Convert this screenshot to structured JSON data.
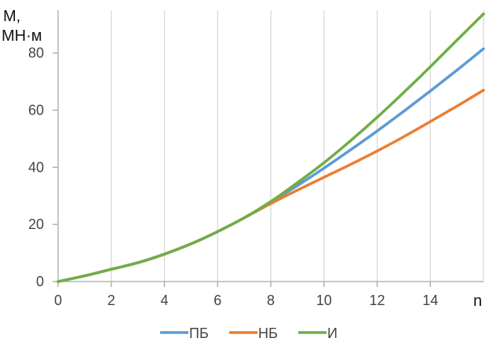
{
  "chart_data": {
    "type": "line",
    "ylabel_line1": "М,",
    "ylabel_line2": "МН·м",
    "xlabel": "n",
    "xlim": [
      0,
      16
    ],
    "ylim": [
      0,
      95
    ],
    "x_ticks": [
      0,
      2,
      4,
      6,
      8,
      10,
      12,
      14
    ],
    "y_ticks": [
      0,
      20,
      40,
      60,
      80
    ],
    "grid": "vertical",
    "legend_position": "bottom",
    "series": [
      {
        "name": "ПБ",
        "color": "#5B9BD5",
        "x": [
          0,
          1,
          2,
          3,
          4,
          5,
          6,
          7,
          8,
          9,
          10,
          11,
          12,
          13,
          14,
          15,
          16
        ],
        "y": [
          0,
          2,
          4.3,
          6.6,
          9.6,
          13.2,
          17.5,
          22.3,
          27.8,
          33.6,
          39.7,
          46.1,
          52.7,
          59.6,
          66.7,
          74.0,
          81.5
        ]
      },
      {
        "name": "НБ",
        "color": "#ED7D31",
        "x": [
          0,
          1,
          2,
          3,
          4,
          5,
          6,
          7,
          8,
          9,
          10,
          11,
          12,
          13,
          14,
          15,
          16
        ],
        "y": [
          0,
          2,
          4.3,
          6.6,
          9.6,
          13.2,
          17.5,
          22.3,
          27.3,
          32.0,
          36.5,
          41.0,
          45.7,
          50.7,
          56.0,
          61.4,
          67.0
        ]
      },
      {
        "name": "И",
        "color": "#70AD47",
        "x": [
          0,
          1,
          2,
          3,
          4,
          5,
          6,
          7,
          8,
          9,
          10,
          11,
          12,
          13,
          14,
          15,
          16
        ],
        "y": [
          0,
          2,
          4.3,
          6.6,
          9.6,
          13.2,
          17.5,
          22.3,
          28.0,
          34.6,
          41.6,
          49.3,
          57.5,
          66.2,
          75.2,
          84.5,
          93.7
        ]
      }
    ]
  }
}
